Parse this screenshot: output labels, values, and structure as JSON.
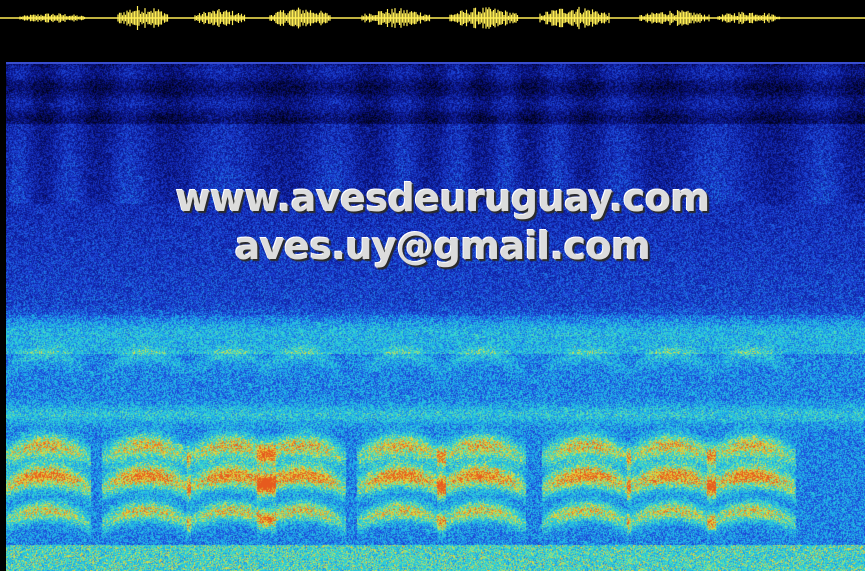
{
  "watermark": {
    "website": "www.avesdeuruguay.com",
    "email": "aves.uy@gmail.com"
  },
  "colors": {
    "background": "#000000",
    "waveform": "#ffee55",
    "divider": "#3a4fd0",
    "spectrogram_low": "#0a1a8a",
    "spectrogram_mid": "#22c4e8",
    "spectrogram_high": "#e8e040",
    "spectrogram_peak": "#e06020"
  }
}
